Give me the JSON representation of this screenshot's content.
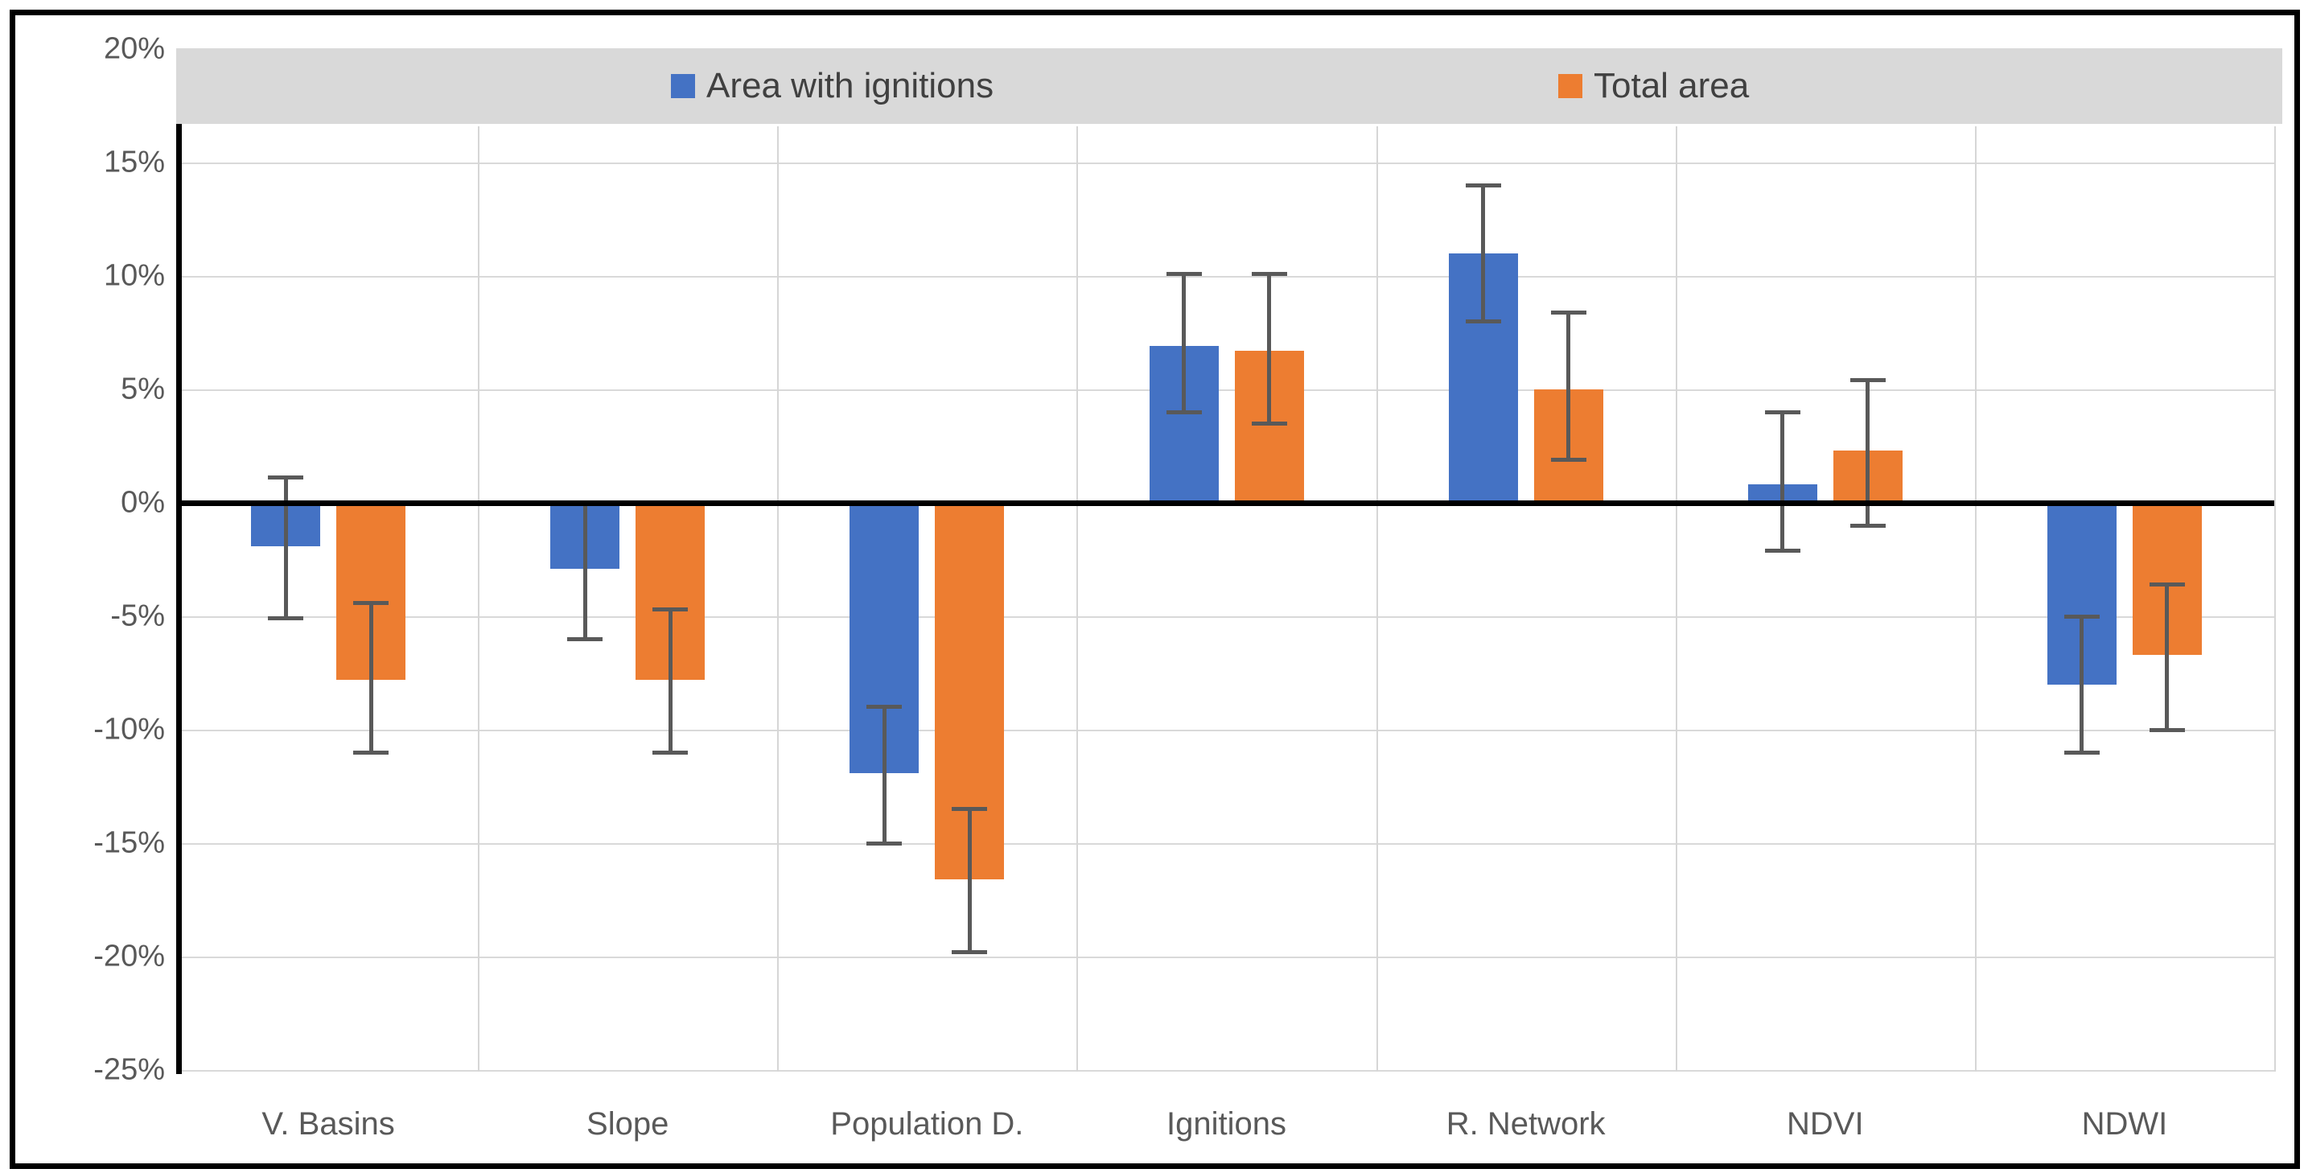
{
  "chart_data": {
    "type": "bar",
    "categories": [
      "V. Basins",
      "Slope",
      "Population D.",
      "Ignitions",
      "R. Network",
      "NDVI",
      "NDWI"
    ],
    "series": [
      {
        "name": "Area with ignitions",
        "color": "#4472C4",
        "values": [
          -1.9,
          -2.9,
          -11.9,
          6.9,
          11.0,
          0.8,
          -8.0
        ],
        "error_high": [
          1.1,
          0.0,
          -9.0,
          10.1,
          14.0,
          4.0,
          -5.0
        ],
        "error_low": [
          -5.1,
          -6.0,
          -15.0,
          4.0,
          8.0,
          -2.1,
          -11.0
        ]
      },
      {
        "name": "Total area",
        "color": "#ED7D31",
        "values": [
          -7.8,
          -7.8,
          -16.6,
          6.7,
          5.0,
          2.3,
          -6.7
        ],
        "error_high": [
          -4.4,
          -4.7,
          -13.5,
          10.1,
          8.4,
          5.4,
          -3.6
        ],
        "error_low": [
          -11.0,
          -11.0,
          -19.8,
          3.5,
          1.9,
          -1.0,
          -10.0
        ]
      }
    ],
    "y_axis": {
      "unit": "%",
      "min": -25,
      "max": 20,
      "tick_step": 5,
      "tick_labels": [
        "20%",
        "15%",
        "10%",
        "5%",
        "0%",
        "-5%",
        "-10%",
        "-15%",
        "-20%",
        "-25%"
      ],
      "grid": true
    },
    "xlabel": "",
    "ylabel": "",
    "title": "",
    "legend": {
      "position": "top",
      "background": "#D9D9D9"
    },
    "colors": {
      "error_bar": "#595959",
      "grid": "#D9D9D9",
      "axis": "#000000",
      "tick_text": "#595959",
      "legend_text": "#404040",
      "figure_border": "#000000",
      "background": "#FFFFFF"
    }
  }
}
